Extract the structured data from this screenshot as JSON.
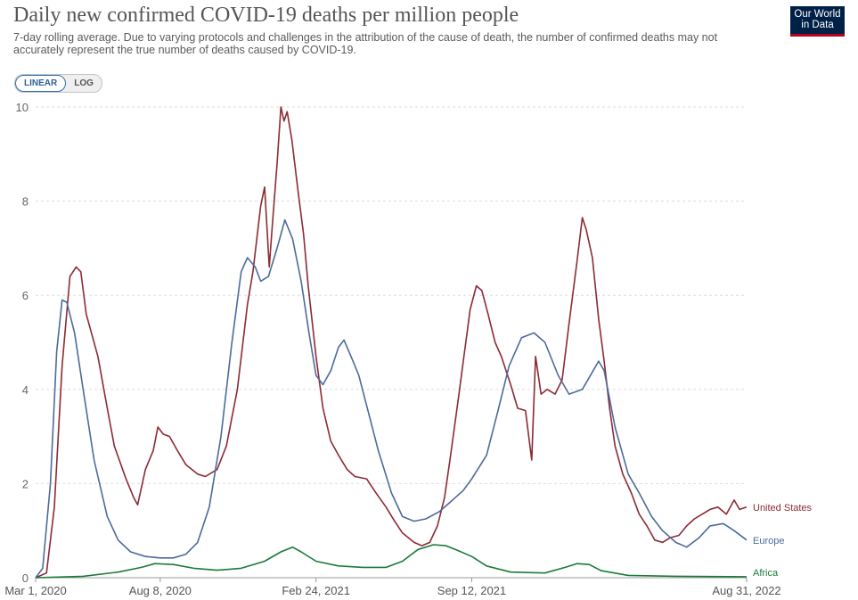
{
  "header": {
    "title": "Daily new confirmed COVID-19 deaths per million people",
    "subtitle": "7-day rolling average. Due to varying protocols and challenges in the attribution of the cause of death, the number of confirmed deaths may not accurately represent the true number of deaths caused by COVID-19.",
    "logo_line1": "Our World",
    "logo_line2": "in Data"
  },
  "controls": {
    "linear_label": "LINEAR",
    "log_label": "LOG",
    "selected": "linear"
  },
  "chart_data": {
    "type": "line",
    "title": "Daily new confirmed COVID-19 deaths per million people",
    "xlabel": "",
    "ylabel": "",
    "x_range": [
      "2020-03-01",
      "2022-08-31"
    ],
    "ylim": [
      0,
      10
    ],
    "y_ticks": [
      0,
      2,
      4,
      6,
      8,
      10
    ],
    "x_ticks": [
      {
        "date": "2020-03-01",
        "label": "Mar 1, 2020"
      },
      {
        "date": "2020-08-08",
        "label": "Aug 8, 2020"
      },
      {
        "date": "2021-02-24",
        "label": "Feb 24, 2021"
      },
      {
        "date": "2021-09-12",
        "label": "Sep 12, 2021"
      },
      {
        "date": "2022-08-31",
        "label": "Aug 31, 2022"
      }
    ],
    "grid": "horizontal",
    "legend": "line-end labels",
    "series": [
      {
        "name": "United States",
        "color": "#8c2a33",
        "points": [
          [
            "2020-03-01",
            0
          ],
          [
            "2020-03-15",
            0.1
          ],
          [
            "2020-03-25",
            1.5
          ],
          [
            "2020-04-04",
            4.5
          ],
          [
            "2020-04-14",
            6.4
          ],
          [
            "2020-04-22",
            6.6
          ],
          [
            "2020-04-28",
            6.5
          ],
          [
            "2020-05-05",
            5.6
          ],
          [
            "2020-05-20",
            4.7
          ],
          [
            "2020-06-01",
            3.6
          ],
          [
            "2020-06-10",
            2.8
          ],
          [
            "2020-06-25",
            2.1
          ],
          [
            "2020-07-05",
            1.7
          ],
          [
            "2020-07-10",
            1.55
          ],
          [
            "2020-07-20",
            2.3
          ],
          [
            "2020-07-30",
            2.7
          ],
          [
            "2020-08-05",
            3.2
          ],
          [
            "2020-08-12",
            3.05
          ],
          [
            "2020-08-20",
            3.0
          ],
          [
            "2020-08-30",
            2.7
          ],
          [
            "2020-09-10",
            2.4
          ],
          [
            "2020-09-25",
            2.2
          ],
          [
            "2020-10-05",
            2.15
          ],
          [
            "2020-10-20",
            2.3
          ],
          [
            "2020-11-01",
            2.8
          ],
          [
            "2020-11-15",
            4.0
          ],
          [
            "2020-11-28",
            5.8
          ],
          [
            "2020-12-05",
            6.5
          ],
          [
            "2020-12-15",
            7.9
          ],
          [
            "2020-12-20",
            8.3
          ],
          [
            "2020-12-26",
            6.6
          ],
          [
            "2020-12-30",
            7.5
          ],
          [
            "2021-01-05",
            8.8
          ],
          [
            "2021-01-10",
            10.0
          ],
          [
            "2021-01-14",
            9.7
          ],
          [
            "2021-01-18",
            9.9
          ],
          [
            "2021-01-24",
            9.3
          ],
          [
            "2021-02-01",
            8.2
          ],
          [
            "2021-02-08",
            7.3
          ],
          [
            "2021-02-14",
            6.2
          ],
          [
            "2021-02-24",
            4.7
          ],
          [
            "2021-03-05",
            3.6
          ],
          [
            "2021-03-15",
            2.9
          ],
          [
            "2021-03-25",
            2.6
          ],
          [
            "2021-04-05",
            2.3
          ],
          [
            "2021-04-15",
            2.15
          ],
          [
            "2021-04-30",
            2.1
          ],
          [
            "2021-05-10",
            1.85
          ],
          [
            "2021-05-25",
            1.5
          ],
          [
            "2021-06-05",
            1.2
          ],
          [
            "2021-06-15",
            0.95
          ],
          [
            "2021-06-30",
            0.75
          ],
          [
            "2021-07-10",
            0.68
          ],
          [
            "2021-07-20",
            0.75
          ],
          [
            "2021-07-30",
            1.1
          ],
          [
            "2021-08-08",
            1.7
          ],
          [
            "2021-08-15",
            2.5
          ],
          [
            "2021-08-25",
            3.7
          ],
          [
            "2021-09-02",
            4.7
          ],
          [
            "2021-09-10",
            5.7
          ],
          [
            "2021-09-18",
            6.2
          ],
          [
            "2021-09-25",
            6.1
          ],
          [
            "2021-10-03",
            5.6
          ],
          [
            "2021-10-12",
            5.0
          ],
          [
            "2021-10-20",
            4.7
          ],
          [
            "2021-11-01",
            4.1
          ],
          [
            "2021-11-10",
            3.6
          ],
          [
            "2021-11-20",
            3.55
          ],
          [
            "2021-11-28",
            2.5
          ],
          [
            "2021-12-03",
            4.7
          ],
          [
            "2021-12-10",
            3.9
          ],
          [
            "2021-12-18",
            4.0
          ],
          [
            "2021-12-28",
            3.9
          ],
          [
            "2022-01-06",
            4.2
          ],
          [
            "2022-01-15",
            5.4
          ],
          [
            "2022-01-25",
            6.7
          ],
          [
            "2022-02-01",
            7.65
          ],
          [
            "2022-02-06",
            7.4
          ],
          [
            "2022-02-14",
            6.8
          ],
          [
            "2022-02-22",
            5.5
          ],
          [
            "2022-03-01",
            4.6
          ],
          [
            "2022-03-08",
            3.6
          ],
          [
            "2022-03-15",
            2.8
          ],
          [
            "2022-03-25",
            2.2
          ],
          [
            "2022-04-05",
            1.8
          ],
          [
            "2022-04-15",
            1.35
          ],
          [
            "2022-04-25",
            1.1
          ],
          [
            "2022-05-05",
            0.8
          ],
          [
            "2022-05-15",
            0.75
          ],
          [
            "2022-05-25",
            0.85
          ],
          [
            "2022-06-05",
            0.9
          ],
          [
            "2022-06-15",
            1.1
          ],
          [
            "2022-06-25",
            1.25
          ],
          [
            "2022-07-05",
            1.35
          ],
          [
            "2022-07-15",
            1.45
          ],
          [
            "2022-07-25",
            1.5
          ],
          [
            "2022-08-05",
            1.35
          ],
          [
            "2022-08-15",
            1.65
          ],
          [
            "2022-08-22",
            1.45
          ],
          [
            "2022-08-31",
            1.5
          ]
        ]
      },
      {
        "name": "Europe",
        "color": "#4c6a9c",
        "points": [
          [
            "2020-03-01",
            0
          ],
          [
            "2020-03-10",
            0.2
          ],
          [
            "2020-03-20",
            2.0
          ],
          [
            "2020-03-28",
            4.8
          ],
          [
            "2020-04-04",
            5.9
          ],
          [
            "2020-04-10",
            5.85
          ],
          [
            "2020-04-20",
            5.2
          ],
          [
            "2020-05-01",
            4.0
          ],
          [
            "2020-05-15",
            2.5
          ],
          [
            "2020-06-01",
            1.3
          ],
          [
            "2020-06-15",
            0.8
          ],
          [
            "2020-07-01",
            0.55
          ],
          [
            "2020-07-20",
            0.45
          ],
          [
            "2020-08-08",
            0.42
          ],
          [
            "2020-08-25",
            0.42
          ],
          [
            "2020-09-10",
            0.5
          ],
          [
            "2020-09-25",
            0.75
          ],
          [
            "2020-10-10",
            1.5
          ],
          [
            "2020-10-25",
            3.0
          ],
          [
            "2020-11-08",
            5.0
          ],
          [
            "2020-11-20",
            6.5
          ],
          [
            "2020-11-28",
            6.8
          ],
          [
            "2020-12-08",
            6.6
          ],
          [
            "2020-12-15",
            6.3
          ],
          [
            "2020-12-25",
            6.4
          ],
          [
            "2021-01-05",
            7.0
          ],
          [
            "2021-01-15",
            7.6
          ],
          [
            "2021-01-25",
            7.2
          ],
          [
            "2021-02-05",
            6.3
          ],
          [
            "2021-02-15",
            5.2
          ],
          [
            "2021-02-24",
            4.3
          ],
          [
            "2021-03-05",
            4.1
          ],
          [
            "2021-03-15",
            4.4
          ],
          [
            "2021-03-25",
            4.9
          ],
          [
            "2021-04-01",
            5.05
          ],
          [
            "2021-04-10",
            4.7
          ],
          [
            "2021-04-20",
            4.3
          ],
          [
            "2021-05-01",
            3.6
          ],
          [
            "2021-05-15",
            2.7
          ],
          [
            "2021-06-01",
            1.8
          ],
          [
            "2021-06-15",
            1.3
          ],
          [
            "2021-06-30",
            1.2
          ],
          [
            "2021-07-15",
            1.25
          ],
          [
            "2021-08-01",
            1.4
          ],
          [
            "2021-08-15",
            1.6
          ],
          [
            "2021-09-01",
            1.85
          ],
          [
            "2021-09-12",
            2.1
          ],
          [
            "2021-10-01",
            2.6
          ],
          [
            "2021-10-15",
            3.5
          ],
          [
            "2021-10-30",
            4.5
          ],
          [
            "2021-11-15",
            5.1
          ],
          [
            "2021-12-01",
            5.2
          ],
          [
            "2021-12-15",
            5.0
          ],
          [
            "2022-01-01",
            4.3
          ],
          [
            "2022-01-15",
            3.9
          ],
          [
            "2022-02-01",
            4.0
          ],
          [
            "2022-02-15",
            4.4
          ],
          [
            "2022-02-22",
            4.6
          ],
          [
            "2022-03-01",
            4.4
          ],
          [
            "2022-03-15",
            3.2
          ],
          [
            "2022-04-01",
            2.2
          ],
          [
            "2022-04-15",
            1.8
          ],
          [
            "2022-05-01",
            1.3
          ],
          [
            "2022-05-15",
            1.0
          ],
          [
            "2022-06-01",
            0.75
          ],
          [
            "2022-06-15",
            0.65
          ],
          [
            "2022-07-01",
            0.85
          ],
          [
            "2022-07-15",
            1.1
          ],
          [
            "2022-08-01",
            1.15
          ],
          [
            "2022-08-15",
            1.0
          ],
          [
            "2022-08-31",
            0.8
          ]
        ]
      },
      {
        "name": "Africa",
        "color": "#1a7a3a",
        "points": [
          [
            "2020-03-01",
            0
          ],
          [
            "2020-05-01",
            0.03
          ],
          [
            "2020-06-15",
            0.12
          ],
          [
            "2020-07-15",
            0.22
          ],
          [
            "2020-08-01",
            0.3
          ],
          [
            "2020-08-25",
            0.28
          ],
          [
            "2020-09-20",
            0.2
          ],
          [
            "2020-10-20",
            0.16
          ],
          [
            "2020-11-20",
            0.2
          ],
          [
            "2020-12-20",
            0.35
          ],
          [
            "2021-01-10",
            0.55
          ],
          [
            "2021-01-25",
            0.65
          ],
          [
            "2021-02-05",
            0.55
          ],
          [
            "2021-02-24",
            0.35
          ],
          [
            "2021-03-25",
            0.25
          ],
          [
            "2021-04-25",
            0.22
          ],
          [
            "2021-05-25",
            0.22
          ],
          [
            "2021-06-15",
            0.35
          ],
          [
            "2021-07-05",
            0.6
          ],
          [
            "2021-07-25",
            0.7
          ],
          [
            "2021-08-10",
            0.68
          ],
          [
            "2021-08-25",
            0.58
          ],
          [
            "2021-09-12",
            0.45
          ],
          [
            "2021-10-01",
            0.25
          ],
          [
            "2021-11-01",
            0.12
          ],
          [
            "2021-12-15",
            0.1
          ],
          [
            "2022-01-10",
            0.22
          ],
          [
            "2022-01-25",
            0.3
          ],
          [
            "2022-02-10",
            0.28
          ],
          [
            "2022-02-25",
            0.15
          ],
          [
            "2022-04-01",
            0.05
          ],
          [
            "2022-06-01",
            0.03
          ],
          [
            "2022-08-31",
            0.02
          ]
        ]
      }
    ]
  }
}
